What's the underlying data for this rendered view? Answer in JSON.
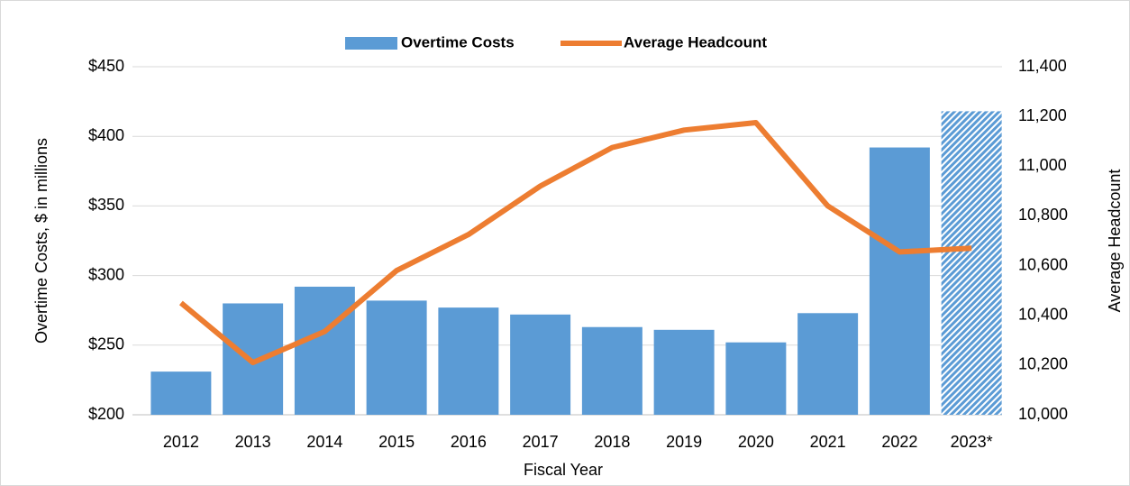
{
  "chart_data": {
    "type": "bar",
    "categories": [
      "2012",
      "2013",
      "2014",
      "2015",
      "2016",
      "2017",
      "2018",
      "2019",
      "2020",
      "2021",
      "2022",
      "2023*"
    ],
    "series": [
      {
        "name": "Overtime Costs",
        "type": "bar",
        "color": "#5b9bd5",
        "values": [
          231,
          280,
          292,
          282,
          277,
          272,
          263,
          261,
          252,
          273,
          392,
          418
        ],
        "hatched": [
          false,
          false,
          false,
          false,
          false,
          false,
          false,
          false,
          false,
          false,
          false,
          true
        ]
      },
      {
        "name": "Average Headcount",
        "type": "line",
        "color": "#ed7d31",
        "axis": "y2",
        "values": [
          10450,
          10210,
          10335,
          10580,
          10725,
          10920,
          11075,
          11145,
          11175,
          10840,
          10655,
          10670
        ]
      }
    ],
    "xlabel": "Fiscal Year",
    "ylabel": "Overtime Costs, $ in millions",
    "y2label": "Average Headcount",
    "ylim": [
      200,
      450
    ],
    "yticks": [
      {
        "value": 200,
        "label": "$200"
      },
      {
        "value": 250,
        "label": "$250"
      },
      {
        "value": 300,
        "label": "$300"
      },
      {
        "value": 350,
        "label": "$350"
      },
      {
        "value": 400,
        "label": "$400"
      },
      {
        "value": 450,
        "label": "$450"
      }
    ],
    "y2lim": [
      10000,
      11400
    ],
    "y2ticks": [
      {
        "value": 10000,
        "label": "10,000"
      },
      {
        "value": 10200,
        "label": "10,200"
      },
      {
        "value": 10400,
        "label": "10,400"
      },
      {
        "value": 10600,
        "label": "10,600"
      },
      {
        "value": 10800,
        "label": "10,800"
      },
      {
        "value": 11000,
        "label": "11,000"
      },
      {
        "value": 11200,
        "label": "11,200"
      },
      {
        "value": 11400,
        "label": "11,400"
      }
    ],
    "grid": true,
    "legend": "top"
  }
}
